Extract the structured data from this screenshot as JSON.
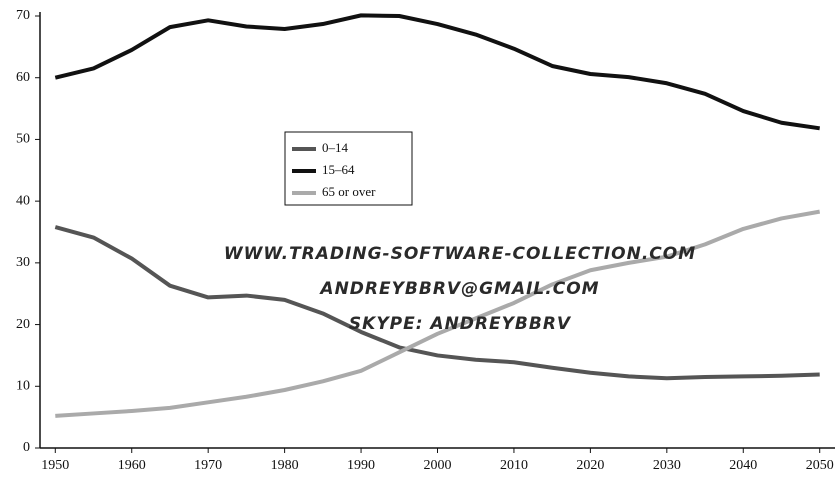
{
  "chart_data": {
    "type": "line",
    "x": [
      1950,
      1955,
      1960,
      1965,
      1970,
      1975,
      1980,
      1985,
      1990,
      1995,
      2000,
      2005,
      2010,
      2015,
      2020,
      2025,
      2030,
      2035,
      2040,
      2045,
      2050
    ],
    "series": [
      {
        "name": "0–14",
        "color": "#555555",
        "values": [
          35.8,
          34.1,
          30.7,
          26.3,
          24.4,
          24.7,
          24,
          21.8,
          18.8,
          16.3,
          15,
          14.3,
          13.9,
          13,
          12.2,
          11.6,
          11.3,
          11.5,
          11.6,
          11.7,
          11.9
        ]
      },
      {
        "name": "15–64",
        "color": "#111111",
        "values": [
          60,
          61.5,
          64.5,
          68.2,
          69.3,
          68.3,
          67.9,
          68.7,
          70.1,
          70,
          68.7,
          67,
          64.7,
          61.9,
          60.6,
          60.1,
          59.1,
          57.4,
          54.6,
          52.7,
          51.8
        ]
      },
      {
        "name": "65 or over",
        "color": "#aaaaaa",
        "values": [
          5.2,
          5.6,
          6,
          6.5,
          7.4,
          8.3,
          9.4,
          10.8,
          12.5,
          15.5,
          18.5,
          21,
          23.5,
          26.5,
          28.8,
          30,
          31,
          33,
          35.5,
          37.2,
          38.3
        ]
      }
    ],
    "xlim": [
      1948,
      2052
    ],
    "xticks": [
      1950,
      1960,
      1970,
      1980,
      1990,
      2000,
      2010,
      2020,
      2030,
      2040,
      2050
    ],
    "ylim": [
      0,
      70
    ],
    "yticks": [
      0,
      10,
      20,
      30,
      40,
      50,
      60,
      70
    ],
    "annotations": [
      "WWW.TRADING-SOFTWARE-COLLECTION.COM",
      "ANDREYBBRV@GMAIL.COM",
      "SKYPE: ANDREYBBRV"
    ]
  }
}
